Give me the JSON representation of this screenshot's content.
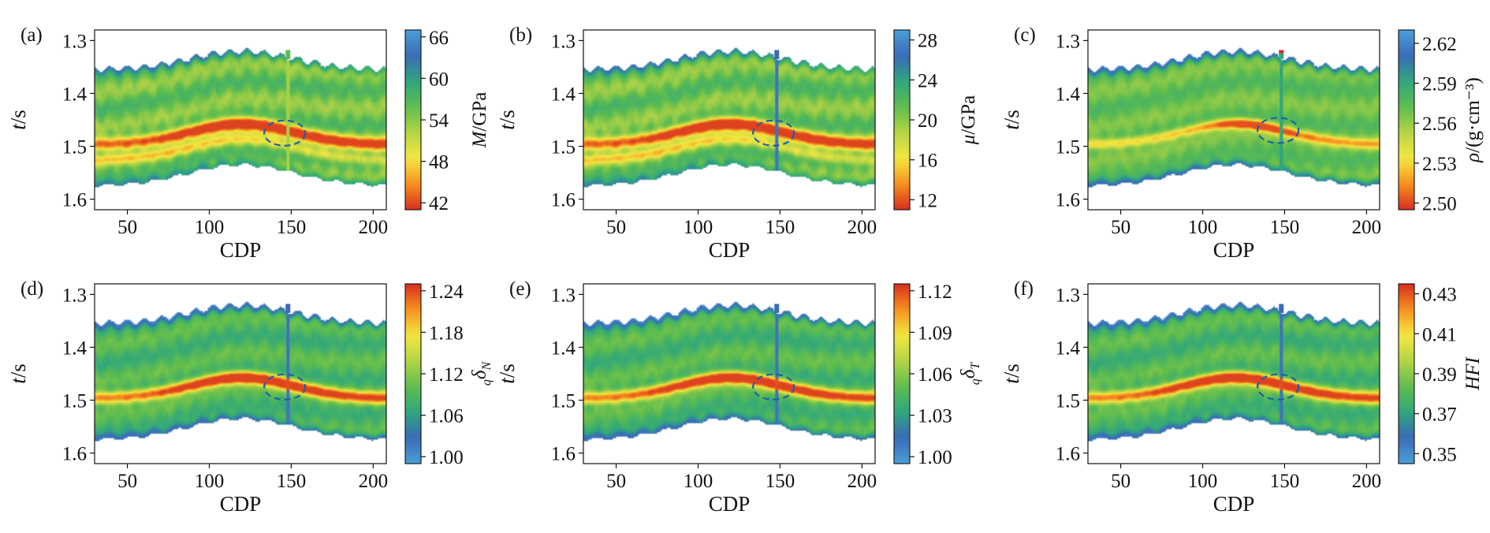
{
  "chart_data": [
    {
      "type": "heatmap",
      "panel_label": "(a)",
      "xlabel": "CDP",
      "ylabel": "t/s",
      "xlim": [
        30,
        208
      ],
      "ylim": [
        1.62,
        1.28
      ],
      "xticks": [
        50,
        100,
        150,
        200
      ],
      "yticks": [
        1.3,
        1.4,
        1.5,
        1.6
      ],
      "colorbar": {
        "label": "M/GPa",
        "ticks": [
          "66",
          "60",
          "54",
          "48",
          "42"
        ],
        "range": [
          41,
          67
        ],
        "reversed": false
      },
      "anomaly_marker": {
        "shape": "dashed-ellipse",
        "cdp": 146,
        "t": 1.475
      },
      "well_trace_cdp": 148
    },
    {
      "type": "heatmap",
      "panel_label": "(b)",
      "xlabel": "CDP",
      "ylabel": "t/s",
      "xlim": [
        30,
        208
      ],
      "ylim": [
        1.62,
        1.28
      ],
      "xticks": [
        50,
        100,
        150,
        200
      ],
      "yticks": [
        1.3,
        1.4,
        1.5,
        1.6
      ],
      "colorbar": {
        "label": "μ/GPa",
        "ticks": [
          "28",
          "24",
          "20",
          "16",
          "12"
        ],
        "range": [
          11,
          29
        ],
        "reversed": false
      },
      "anomaly_marker": {
        "shape": "dashed-ellipse",
        "cdp": 146,
        "t": 1.475
      },
      "well_trace_cdp": 148
    },
    {
      "type": "heatmap",
      "panel_label": "(c)",
      "xlabel": "CDP",
      "ylabel": "t/s",
      "xlim": [
        30,
        208
      ],
      "ylim": [
        1.62,
        1.28
      ],
      "xticks": [
        50,
        100,
        150,
        200
      ],
      "yticks": [
        1.3,
        1.4,
        1.5,
        1.6
      ],
      "colorbar": {
        "label": "ρ/(g·cm⁻³)",
        "ticks": [
          "2.62",
          "2.59",
          "2.56",
          "2.53",
          "2.50"
        ],
        "range": [
          2.495,
          2.63
        ],
        "reversed": false
      },
      "anomaly_marker": {
        "shape": "dashed-ellipse",
        "cdp": 146,
        "t": 1.47
      },
      "well_trace_cdp": 148
    },
    {
      "type": "heatmap",
      "panel_label": "(d)",
      "xlabel": "CDP",
      "ylabel": "t/s",
      "xlim": [
        30,
        208
      ],
      "ylim": [
        1.62,
        1.28
      ],
      "xticks": [
        50,
        100,
        150,
        200
      ],
      "yticks": [
        1.3,
        1.4,
        1.5,
        1.6
      ],
      "colorbar": {
        "label": "qδN",
        "ticks": [
          "1.24",
          "1.18",
          "1.12",
          "1.06",
          "1.00"
        ],
        "range": [
          0.99,
          1.25
        ],
        "reversed": true
      },
      "anomaly_marker": {
        "shape": "dashed-ellipse",
        "cdp": 146,
        "t": 1.475
      },
      "well_trace_cdp": 148
    },
    {
      "type": "heatmap",
      "panel_label": "(e)",
      "xlabel": "CDP",
      "ylabel": "t/s",
      "xlim": [
        30,
        208
      ],
      "ylim": [
        1.62,
        1.28
      ],
      "xticks": [
        50,
        100,
        150,
        200
      ],
      "yticks": [
        1.3,
        1.4,
        1.5,
        1.6
      ],
      "colorbar": {
        "label": "qδT",
        "ticks": [
          "1.12",
          "1.09",
          "1.06",
          "1.03",
          "1.00"
        ],
        "range": [
          0.995,
          1.125
        ],
        "reversed": true
      },
      "anomaly_marker": {
        "shape": "dashed-ellipse",
        "cdp": 146,
        "t": 1.475
      },
      "well_trace_cdp": 148
    },
    {
      "type": "heatmap",
      "panel_label": "(f)",
      "xlabel": "CDP",
      "ylabel": "t/s",
      "xlim": [
        30,
        208
      ],
      "ylim": [
        1.62,
        1.28
      ],
      "xticks": [
        50,
        100,
        150,
        200
      ],
      "yticks": [
        1.3,
        1.4,
        1.5,
        1.6
      ],
      "colorbar": {
        "label": "HFI",
        "ticks": [
          "0.43",
          "0.41",
          "0.39",
          "0.37",
          "0.35"
        ],
        "range": [
          0.345,
          0.435
        ],
        "reversed": true
      },
      "anomaly_marker": {
        "shape": "dashed-ellipse",
        "cdp": 146,
        "t": 1.475
      },
      "well_trace_cdp": 148
    }
  ],
  "colors": {
    "colormap": [
      "#d62f1f",
      "#f7901e",
      "#f4e842",
      "#b5d445",
      "#5fbd4f",
      "#2fa77d",
      "#3b6ab8",
      "#4aa0d8"
    ],
    "anomaly_ellipse": "#1f5fa8"
  }
}
